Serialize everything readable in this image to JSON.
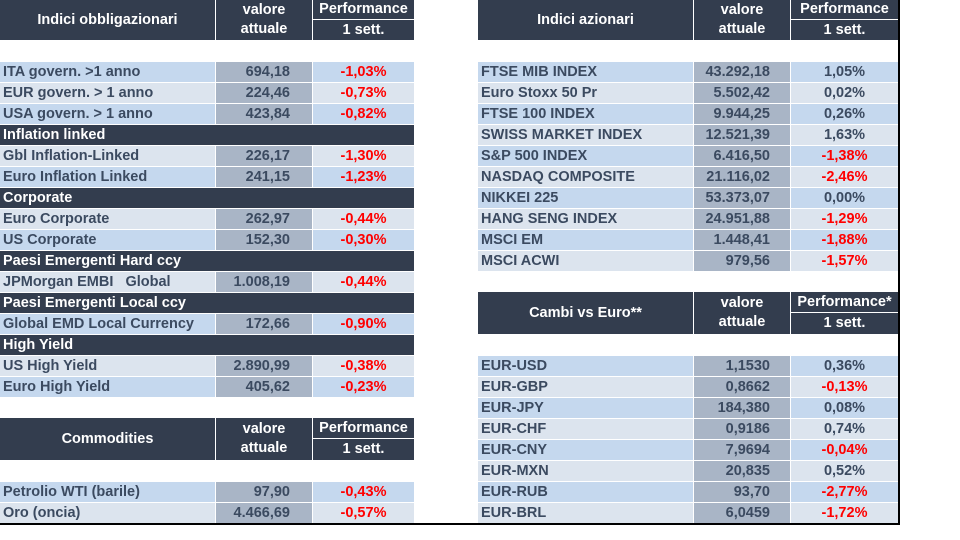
{
  "bond_table": {
    "header": {
      "title": "Indici obbligazionari",
      "value_label_1": "valore",
      "value_label_2": "attuale",
      "perf_label_1": "Performance",
      "perf_label_2": "1 sett."
    },
    "rows": [
      {
        "type": "data",
        "name": "ITA govern. >1 anno",
        "value": "694,18",
        "perf": "-1,03%",
        "neg": true
      },
      {
        "type": "data",
        "name": "EUR govern. > 1 anno",
        "value": "224,46",
        "perf": "-0,73%",
        "neg": true
      },
      {
        "type": "data",
        "name": "USA govern. > 1 anno",
        "value": "423,84",
        "perf": "-0,82%",
        "neg": true
      },
      {
        "type": "section",
        "name": "Inflation linked"
      },
      {
        "type": "data",
        "name": "Gbl Inflation-Linked",
        "value": "226,17",
        "perf": "-1,30%",
        "neg": true
      },
      {
        "type": "data",
        "name": "Euro Inflation Linked",
        "value": "241,15",
        "perf": "-1,23%",
        "neg": true
      },
      {
        "type": "section",
        "name": "Corporate"
      },
      {
        "type": "data",
        "name": "Euro Corporate",
        "value": "262,97",
        "perf": "-0,44%",
        "neg": true
      },
      {
        "type": "data",
        "name": "US Corporate",
        "value": "152,30",
        "perf": "-0,30%",
        "neg": true
      },
      {
        "type": "section",
        "name": "Paesi Emergenti Hard ccy"
      },
      {
        "type": "data",
        "name": "JPMorgan EMBI   Global",
        "value": "1.008,19",
        "perf": "-0,44%",
        "neg": true
      },
      {
        "type": "section",
        "name": "Paesi Emergenti Local ccy"
      },
      {
        "type": "data",
        "name": "Global EMD Local Currency",
        "value": "172,66",
        "perf": "-0,90%",
        "neg": true
      },
      {
        "type": "section",
        "name": "High Yield"
      },
      {
        "type": "data",
        "name": "US High Yield",
        "value": "2.890,99",
        "perf": "-0,38%",
        "neg": true
      },
      {
        "type": "data",
        "name": "Euro High Yield",
        "value": "405,62",
        "perf": "-0,23%",
        "neg": true
      }
    ]
  },
  "commodities_table": {
    "header": {
      "title": "Commodities",
      "value_label_1": "valore",
      "value_label_2": "attuale",
      "perf_label_1": "Performance",
      "perf_label_2": "1 sett."
    },
    "rows": [
      {
        "type": "data",
        "name": "Petrolio WTI (barile)",
        "value": "97,90",
        "perf": "-0,43%",
        "neg": true
      },
      {
        "type": "data",
        "name": "Oro (oncia)",
        "value": "4.466,69",
        "perf": "-0,57%",
        "neg": true
      }
    ]
  },
  "equity_table": {
    "header": {
      "title": "Indici azionari",
      "value_label_1": "valore",
      "value_label_2": "attuale",
      "perf_label_1": "Performance",
      "perf_label_2": "1 sett."
    },
    "rows": [
      {
        "type": "data",
        "name": "FTSE MIB INDEX",
        "value": "43.292,18",
        "perf": "1,05%",
        "neg": false
      },
      {
        "type": "data",
        "name": "Euro Stoxx 50 Pr",
        "value": "5.502,42",
        "perf": "0,02%",
        "neg": false
      },
      {
        "type": "data",
        "name": "FTSE 100 INDEX",
        "value": "9.944,25",
        "perf": "0,26%",
        "neg": false
      },
      {
        "type": "data",
        "name": "SWISS MARKET INDEX",
        "value": "12.521,39",
        "perf": "1,63%",
        "neg": false
      },
      {
        "type": "data",
        "name": "S&P 500 INDEX",
        "value": "6.416,50",
        "perf": "-1,38%",
        "neg": true
      },
      {
        "type": "data",
        "name": "NASDAQ COMPOSITE",
        "value": "21.116,02",
        "perf": "-2,46%",
        "neg": true
      },
      {
        "type": "data",
        "name": "NIKKEI 225",
        "value": "53.373,07",
        "perf": "0,00%",
        "neg": false
      },
      {
        "type": "data",
        "name": "HANG SENG INDEX",
        "value": "24.951,88",
        "perf": "-1,29%",
        "neg": true
      },
      {
        "type": "data",
        "name": "MSCI EM",
        "value": "1.448,41",
        "perf": "-1,88%",
        "neg": true
      },
      {
        "type": "data",
        "name": "MSCI ACWI",
        "value": "979,56",
        "perf": "-1,57%",
        "neg": true
      }
    ]
  },
  "fx_table": {
    "header": {
      "title": "Cambi vs Euro**",
      "value_label_1": "valore",
      "value_label_2": "attuale",
      "perf_label_1": "Performance*",
      "perf_label_2": "1 sett."
    },
    "rows": [
      {
        "type": "data",
        "name": "EUR-USD",
        "value": "1,1530",
        "perf": "0,36%",
        "neg": false
      },
      {
        "type": "data",
        "name": "EUR-GBP",
        "value": "0,8662",
        "perf": "-0,13%",
        "neg": true
      },
      {
        "type": "data",
        "name": "EUR-JPY",
        "value": "184,380",
        "perf": "0,08%",
        "neg": false
      },
      {
        "type": "data",
        "name": "EUR-CHF",
        "value": "0,9186",
        "perf": "0,74%",
        "neg": false
      },
      {
        "type": "data",
        "name": "EUR-CNY",
        "value": "7,9694",
        "perf": "-0,04%",
        "neg": true
      },
      {
        "type": "data",
        "name": "EUR-MXN",
        "value": "20,835",
        "perf": "0,52%",
        "neg": false
      },
      {
        "type": "data",
        "name": "EUR-RUB",
        "value": "93,70",
        "perf": "-2,77%",
        "neg": true
      },
      {
        "type": "data",
        "name": "EUR-BRL",
        "value": "6,0459",
        "perf": "-1,72%",
        "neg": true
      }
    ]
  },
  "colors": {
    "header_bg": "#333d4e",
    "row_odd": "#c5d8ee",
    "row_even": "#dce4ee",
    "value_bg": "#a9b5c6",
    "negative": "#ff0000",
    "text": "#3b4a60"
  }
}
